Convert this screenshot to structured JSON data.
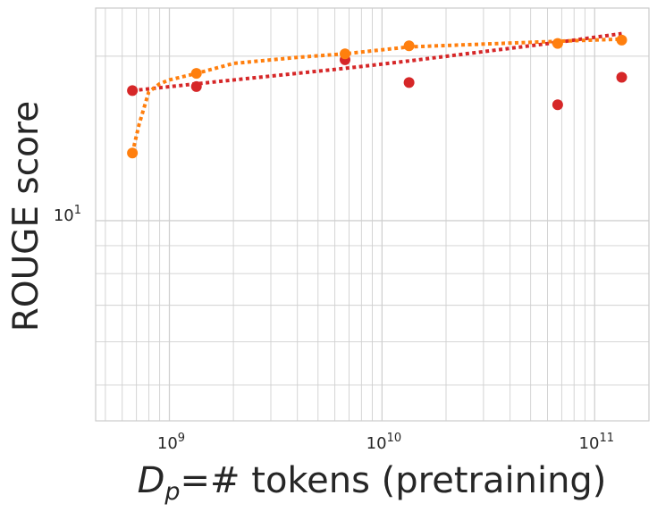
{
  "chart_data": {
    "type": "scatter",
    "title": "",
    "xlabel_main": "D",
    "xlabel_sub": "p",
    "xlabel_rest": "=# tokens (pretraining)",
    "ylabel": "ROUGE score",
    "x_scale": "log",
    "y_scale": "log",
    "xlim": [
      450000000,
      180000000000
    ],
    "ylim": [
      4.3,
      24.5
    ],
    "x_ticks": [
      {
        "value": 1000000000,
        "base": "10",
        "exp": "9"
      },
      {
        "value": 10000000000,
        "base": "10",
        "exp": "10"
      },
      {
        "value": 100000000000,
        "base": "10",
        "exp": "11"
      }
    ],
    "y_ticks": [
      {
        "value": 10,
        "base": "10",
        "exp": "1"
      }
    ],
    "grid": true,
    "series": [
      {
        "color": "#d62728",
        "points": [
          {
            "x": 670000000,
            "y": 17.3
          },
          {
            "x": 1340000000,
            "y": 17.6
          },
          {
            "x": 6700000000,
            "y": 19.7
          },
          {
            "x": 13400000000,
            "y": 17.9
          },
          {
            "x": 67000000000,
            "y": 16.3
          },
          {
            "x": 134000000000,
            "y": 18.3
          }
        ],
        "fit": [
          {
            "x": 670000000,
            "y": 17.3
          },
          {
            "x": 1340000000,
            "y": 17.8
          },
          {
            "x": 6700000000,
            "y": 19.0
          },
          {
            "x": 13400000000,
            "y": 19.6
          },
          {
            "x": 67000000000,
            "y": 21.2
          },
          {
            "x": 134000000000,
            "y": 22.0
          }
        ]
      },
      {
        "color": "#ff7f0e",
        "points": [
          {
            "x": 670000000,
            "y": 13.3
          },
          {
            "x": 1340000000,
            "y": 18.6
          },
          {
            "x": 6700000000,
            "y": 20.2
          },
          {
            "x": 13400000000,
            "y": 20.9
          },
          {
            "x": 67000000000,
            "y": 21.1
          },
          {
            "x": 134000000000,
            "y": 21.4
          }
        ],
        "fit": [
          {
            "x": 670000000,
            "y": 13.3
          },
          {
            "x": 720000000,
            "y": 15.0
          },
          {
            "x": 800000000,
            "y": 17.2
          },
          {
            "x": 900000000,
            "y": 17.8
          },
          {
            "x": 1000000000,
            "y": 18.1
          },
          {
            "x": 1340000000,
            "y": 18.6
          },
          {
            "x": 2000000000,
            "y": 19.4
          },
          {
            "x": 4000000000,
            "y": 19.9
          },
          {
            "x": 6700000000,
            "y": 20.2
          },
          {
            "x": 13400000000,
            "y": 20.8
          },
          {
            "x": 67000000000,
            "y": 21.3
          },
          {
            "x": 134000000000,
            "y": 21.5
          }
        ]
      }
    ]
  }
}
